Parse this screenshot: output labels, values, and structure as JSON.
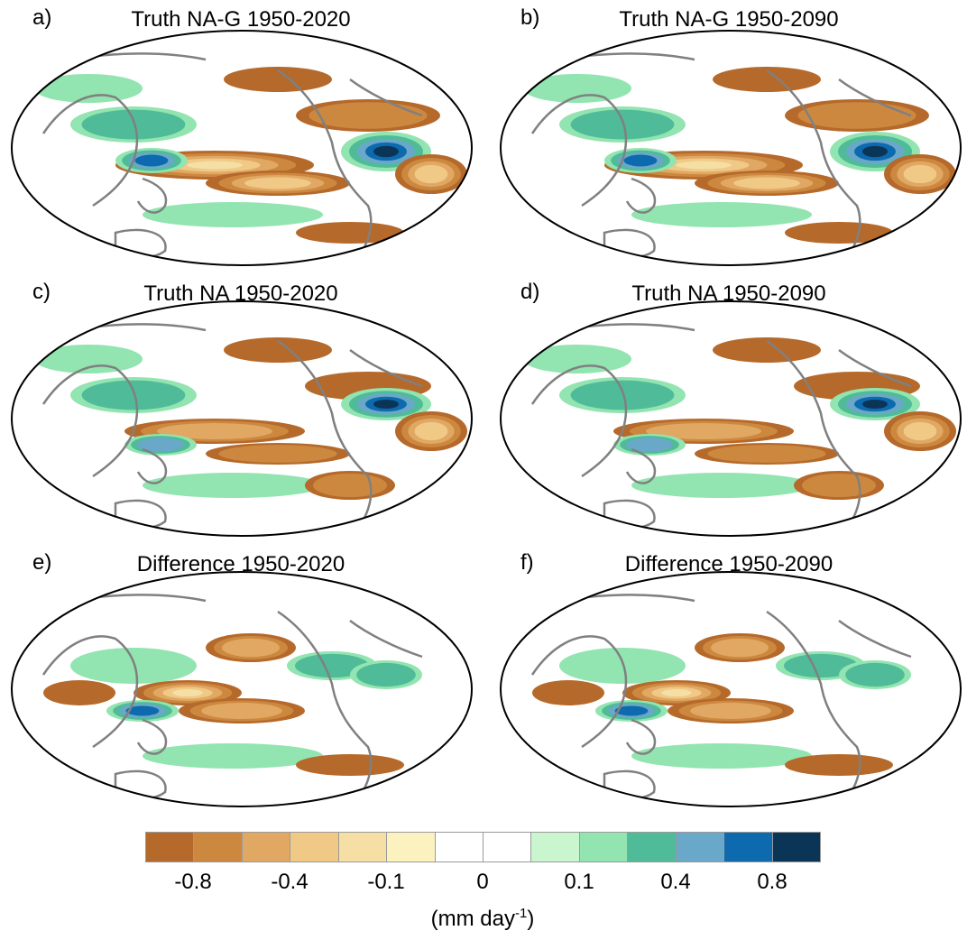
{
  "panels": [
    {
      "label": "a)",
      "title": "Truth NA-G 1950-2020"
    },
    {
      "label": "b)",
      "title": "Truth NA-G 1950-2090"
    },
    {
      "label": "c)",
      "title": "Truth NA 1950-2020"
    },
    {
      "label": "d)",
      "title": "Truth NA 1950-2090"
    },
    {
      "label": "e)",
      "title": "Difference 1950-2020"
    },
    {
      "label": "f)",
      "title": "Difference 1950-2090"
    }
  ],
  "colorbar": {
    "colors": [
      "#b5692a",
      "#cd8840",
      "#e0a863",
      "#f0c987",
      "#f5dfa4",
      "#fcf2c0",
      "#ffffff",
      "#ffffff",
      "#c9f5cf",
      "#92e4b0",
      "#50bb98",
      "#6aa8c9",
      "#0d6aae",
      "#0b3557"
    ],
    "tick_labels": [
      "-0.8",
      "-0.4",
      "-0.1",
      "0",
      "0.1",
      "0.4",
      "0.8"
    ],
    "unit_text": "(mm day",
    "unit_exponent": "-1",
    "unit_close": ")"
  },
  "colors": {
    "land_outline": "#808080",
    "map_border": "#000000"
  }
}
